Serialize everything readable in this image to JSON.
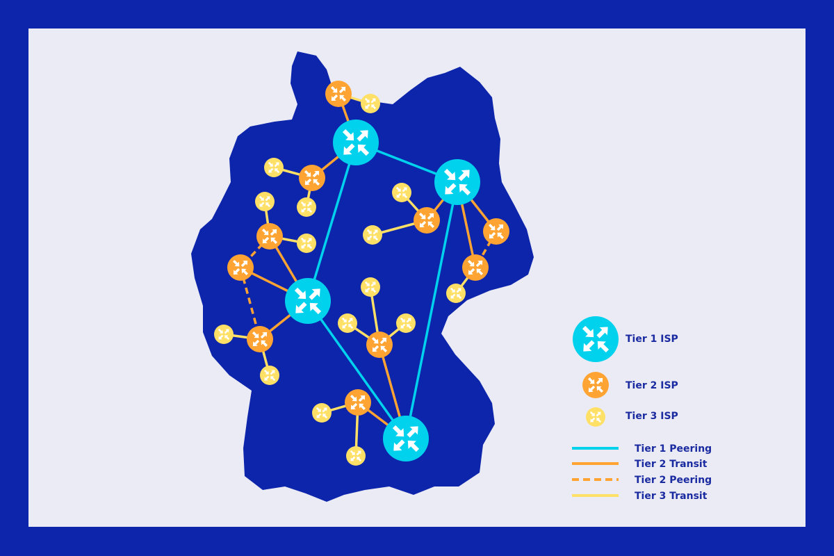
{
  "colors": {
    "frame": "#0c25ab",
    "panel": "#ebebf5",
    "map": "#0c25ab",
    "tier1": "#00d2ee",
    "tier2": "#ffa432",
    "tier3": "#ffe066",
    "text": "#1a2aa0"
  },
  "legend": {
    "tier1_isp": "Tier 1 ISP",
    "tier2_isp": "Tier 2 ISP",
    "tier3_isp": "Tier 3 ISP",
    "tier1_peering": "Tier 1 Peering",
    "tier2_transit": "Tier 2 Transit",
    "tier2_peering": "Tier 2 Peering",
    "tier3_transit": "Tier 3 Transit"
  },
  "node_icon": "router-arrows-icon",
  "network": {
    "nodes": [
      {
        "id": "A",
        "tier": 1
      },
      {
        "id": "B",
        "tier": 1
      },
      {
        "id": "C",
        "tier": 1
      },
      {
        "id": "D",
        "tier": 1
      },
      {
        "id": "a",
        "tier": 2
      },
      {
        "id": "b",
        "tier": 2
      },
      {
        "id": "c",
        "tier": 2
      },
      {
        "id": "d",
        "tier": 2
      },
      {
        "id": "e",
        "tier": 2
      },
      {
        "id": "f",
        "tier": 2
      },
      {
        "id": "g",
        "tier": 2
      },
      {
        "id": "h",
        "tier": 2
      },
      {
        "id": "i",
        "tier": 2
      },
      {
        "id": "j",
        "tier": 2
      },
      {
        "id": "a1",
        "tier": 3
      },
      {
        "id": "b1",
        "tier": 3
      },
      {
        "id": "b2",
        "tier": 3
      },
      {
        "id": "c1",
        "tier": 3
      },
      {
        "id": "c2",
        "tier": 3
      },
      {
        "id": "e1",
        "tier": 3
      },
      {
        "id": "e2",
        "tier": 3
      },
      {
        "id": "f1",
        "tier": 3
      },
      {
        "id": "f2",
        "tier": 3
      },
      {
        "id": "h1",
        "tier": 3
      },
      {
        "id": "i1",
        "tier": 3
      },
      {
        "id": "i2",
        "tier": 3
      },
      {
        "id": "i3",
        "tier": 3
      },
      {
        "id": "j1",
        "tier": 3
      },
      {
        "id": "j2",
        "tier": 3
      }
    ],
    "links": [
      {
        "from": "A",
        "to": "B",
        "type": "tier1-peering"
      },
      {
        "from": "A",
        "to": "C",
        "type": "tier1-peering"
      },
      {
        "from": "B",
        "to": "D",
        "type": "tier1-peering"
      },
      {
        "from": "C",
        "to": "D",
        "type": "tier1-peering"
      },
      {
        "from": "a",
        "to": "A",
        "type": "tier2-transit"
      },
      {
        "from": "b",
        "to": "A",
        "type": "tier2-transit"
      },
      {
        "from": "c",
        "to": "C",
        "type": "tier2-transit"
      },
      {
        "from": "d",
        "to": "C",
        "type": "tier2-transit"
      },
      {
        "from": "e",
        "to": "C",
        "type": "tier2-transit"
      },
      {
        "from": "f",
        "to": "B",
        "type": "tier2-transit"
      },
      {
        "from": "g",
        "to": "B",
        "type": "tier2-transit"
      },
      {
        "from": "h",
        "to": "B",
        "type": "tier2-transit"
      },
      {
        "from": "i",
        "to": "D",
        "type": "tier2-transit"
      },
      {
        "from": "j",
        "to": "D",
        "type": "tier2-transit"
      },
      {
        "from": "c",
        "to": "d",
        "type": "tier2-peering"
      },
      {
        "from": "d",
        "to": "e",
        "type": "tier2-peering"
      },
      {
        "from": "g",
        "to": "h",
        "type": "tier2-peering"
      },
      {
        "from": "a1",
        "to": "a",
        "type": "tier3-transit"
      },
      {
        "from": "b1",
        "to": "b",
        "type": "tier3-transit"
      },
      {
        "from": "b2",
        "to": "b",
        "type": "tier3-transit"
      },
      {
        "from": "c1",
        "to": "c",
        "type": "tier3-transit"
      },
      {
        "from": "c2",
        "to": "c",
        "type": "tier3-transit"
      },
      {
        "from": "e1",
        "to": "e",
        "type": "tier3-transit"
      },
      {
        "from": "e2",
        "to": "e",
        "type": "tier3-transit"
      },
      {
        "from": "f1",
        "to": "f",
        "type": "tier3-transit"
      },
      {
        "from": "f2",
        "to": "f",
        "type": "tier3-transit"
      },
      {
        "from": "h1",
        "to": "h",
        "type": "tier3-transit"
      },
      {
        "from": "i1",
        "to": "i",
        "type": "tier3-transit"
      },
      {
        "from": "i2",
        "to": "i",
        "type": "tier3-transit"
      },
      {
        "from": "i3",
        "to": "i",
        "type": "tier3-transit"
      },
      {
        "from": "j1",
        "to": "j",
        "type": "tier3-transit"
      },
      {
        "from": "j2",
        "to": "j",
        "type": "tier3-transit"
      }
    ]
  }
}
